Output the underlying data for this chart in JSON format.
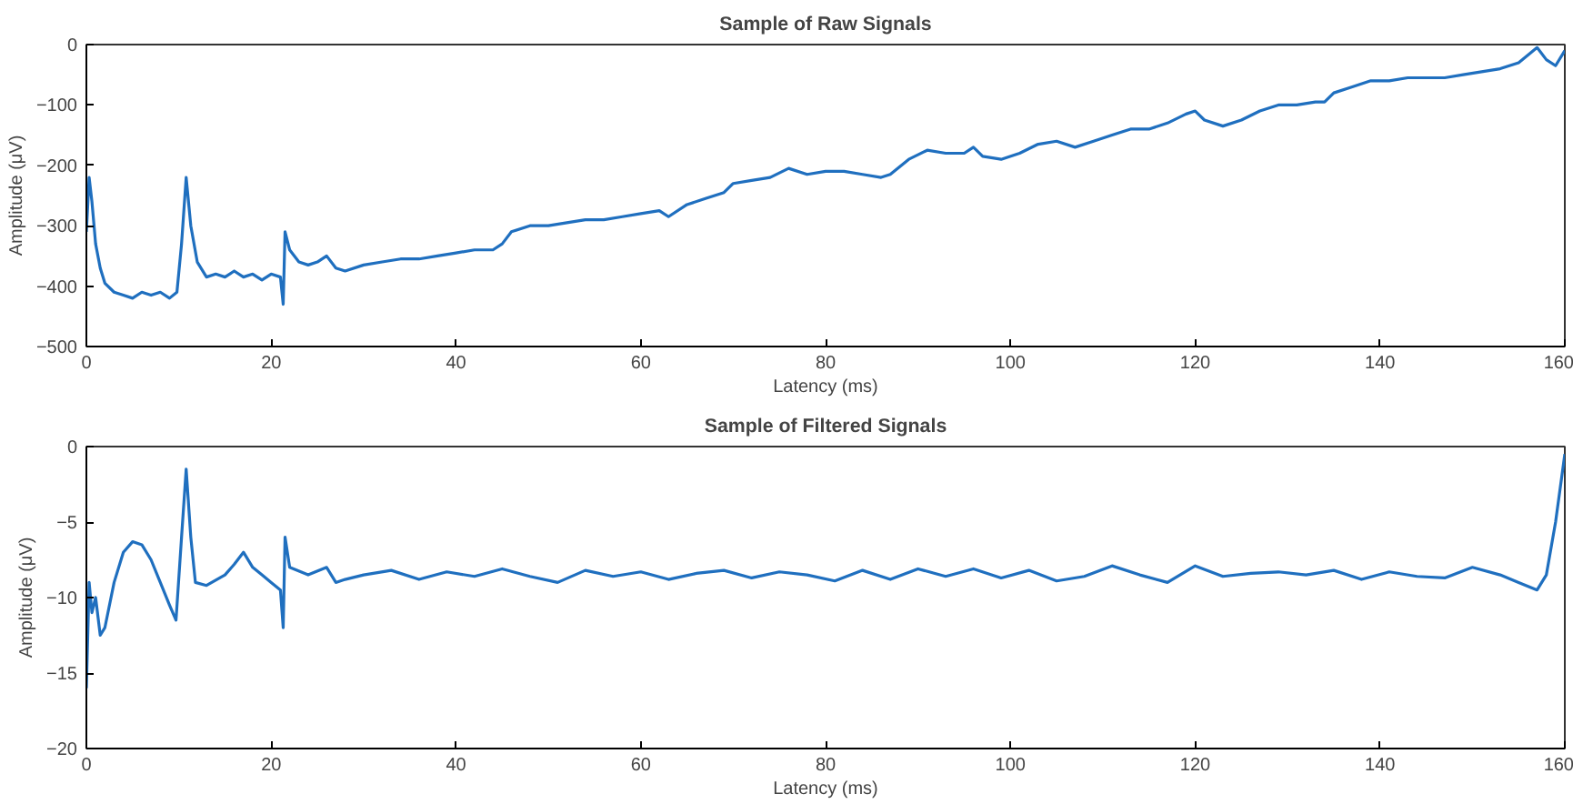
{
  "chart_data": [
    {
      "type": "line",
      "title": "Sample of Raw Signals",
      "xlabel": "Latency (ms)",
      "ylabel": "Amplitude (μV)",
      "xlim": [
        0,
        160
      ],
      "ylim": [
        -500,
        0
      ],
      "xticks": [
        0,
        20,
        40,
        60,
        80,
        100,
        120,
        140,
        160
      ],
      "yticks": [
        -500,
        -400,
        -300,
        -200,
        -100,
        0
      ],
      "grid": false,
      "x": [
        0,
        0.3,
        0.6,
        1,
        1.5,
        2,
        3,
        4,
        5,
        6,
        7,
        8,
        9,
        9.8,
        10.3,
        10.8,
        11.3,
        12,
        13,
        14,
        15,
        16,
        17,
        18,
        19,
        20,
        21,
        21.3,
        21.5,
        22,
        23,
        24,
        25,
        26,
        27,
        28,
        30,
        32,
        34,
        36,
        38,
        40,
        42,
        44,
        45,
        46,
        48,
        50,
        52,
        54,
        56,
        58,
        60,
        62,
        63,
        65,
        67,
        69,
        70,
        72,
        74,
        76,
        78,
        80,
        82,
        84,
        86,
        87,
        89,
        91,
        93,
        95,
        96,
        97,
        99,
        101,
        103,
        105,
        107,
        109,
        111,
        113,
        115,
        117,
        119,
        120,
        121,
        123,
        125,
        127,
        129,
        131,
        133,
        134,
        135,
        137,
        139,
        141,
        143,
        145,
        147,
        149,
        151,
        153,
        155,
        157,
        158,
        159,
        160
      ],
      "series": [
        {
          "color": "#1f6fbf",
          "values": [
            -310,
            -220,
            -260,
            -330,
            -370,
            -395,
            -410,
            -415,
            -420,
            -410,
            -415,
            -410,
            -420,
            -410,
            -330,
            -220,
            -300,
            -360,
            -385,
            -380,
            -385,
            -375,
            -385,
            -380,
            -390,
            -380,
            -385,
            -430,
            -310,
            -340,
            -360,
            -365,
            -360,
            -350,
            -370,
            -375,
            -365,
            -360,
            -355,
            -355,
            -350,
            -345,
            -340,
            -340,
            -330,
            -310,
            -300,
            -300,
            -295,
            -290,
            -290,
            -285,
            -280,
            -275,
            -285,
            -265,
            -255,
            -245,
            -230,
            -225,
            -220,
            -205,
            -215,
            -210,
            -210,
            -215,
            -220,
            -215,
            -190,
            -175,
            -180,
            -180,
            -170,
            -185,
            -190,
            -180,
            -165,
            -160,
            -170,
            -160,
            -150,
            -140,
            -140,
            -130,
            -115,
            -110,
            -125,
            -135,
            -125,
            -110,
            -100,
            -100,
            -95,
            -95,
            -80,
            -70,
            -60,
            -60,
            -55,
            -55,
            -55,
            -50,
            -45,
            -40,
            -30,
            -5,
            -25,
            -35,
            -10
          ]
        }
      ]
    },
    {
      "type": "line",
      "title": "Sample of Filtered Signals",
      "xlabel": "Latency (ms)",
      "ylabel": "Amplitude (μV)",
      "xlim": [
        0,
        160
      ],
      "ylim": [
        -20,
        0
      ],
      "xticks": [
        0,
        20,
        40,
        60,
        80,
        100,
        120,
        140,
        160
      ],
      "yticks": [
        -20,
        -15,
        -10,
        -5,
        0
      ],
      "grid": false,
      "x": [
        0,
        0.3,
        0.6,
        1,
        1.5,
        2,
        3,
        4,
        5,
        6,
        7,
        8,
        9,
        9.7,
        10.3,
        10.8,
        11.3,
        11.8,
        13,
        15,
        16,
        17,
        18,
        19,
        20,
        21,
        21.3,
        21.5,
        22,
        24,
        26,
        27,
        28,
        30,
        33,
        36,
        39,
        42,
        45,
        48,
        51,
        54,
        57,
        60,
        63,
        66,
        69,
        72,
        75,
        78,
        81,
        84,
        87,
        90,
        93,
        96,
        99,
        102,
        105,
        108,
        111,
        114,
        117,
        120,
        123,
        126,
        129,
        132,
        135,
        138,
        141,
        144,
        147,
        150,
        153,
        155,
        157,
        158,
        159,
        160
      ],
      "series": [
        {
          "color": "#1f6fbf",
          "values": [
            -16,
            -9,
            -11,
            -10,
            -12.5,
            -12,
            -9,
            -7,
            -6.3,
            -6.5,
            -7.5,
            -9,
            -10.5,
            -11.5,
            -6,
            -1.5,
            -6,
            -9,
            -9.2,
            -8.5,
            -7.8,
            -7,
            -8,
            -8.5,
            -9,
            -9.5,
            -12,
            -6,
            -8,
            -8.5,
            -8,
            -9,
            -8.8,
            -8.5,
            -8.2,
            -8.8,
            -8.3,
            -8.6,
            -8.1,
            -8.6,
            -9,
            -8.2,
            -8.6,
            -8.3,
            -8.8,
            -8.4,
            -8.2,
            -8.7,
            -8.3,
            -8.5,
            -8.9,
            -8.2,
            -8.8,
            -8.1,
            -8.6,
            -8.1,
            -8.7,
            -8.2,
            -8.9,
            -8.6,
            -7.9,
            -8.5,
            -9,
            -7.9,
            -8.6,
            -8.4,
            -8.3,
            -8.5,
            -8.2,
            -8.8,
            -8.3,
            -8.6,
            -8.7,
            -8,
            -8.5,
            -9,
            -9.5,
            -8.5,
            -5,
            -0.5
          ]
        }
      ]
    }
  ]
}
